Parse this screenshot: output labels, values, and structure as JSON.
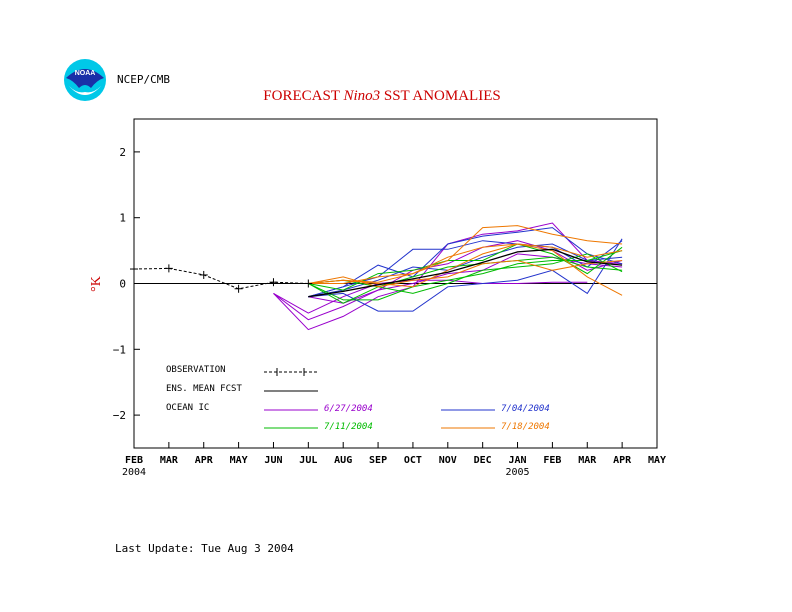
{
  "agency_label": "NCEP/CMB",
  "logo_text": "NOAA",
  "last_update": "Last Update: Tue Aug 3 2004",
  "colors": {
    "title": "#cc0000",
    "ylabel": "#cc0000",
    "ic_6_27": "#9900cc",
    "ic_7_04": "#2233cc",
    "ic_7_11": "#00bb00",
    "ic_7_18": "#ee7700",
    "ens_mean": "#000000",
    "observation": "#000000"
  },
  "chart_data": {
    "type": "line",
    "title_parts": [
      "FORECAST ",
      "Nino3",
      "  SST ANOMALIES"
    ],
    "ylabel": "°K",
    "ylim": [
      -2.5,
      2.5
    ],
    "yticks": [
      -2,
      -1,
      0,
      1,
      2
    ],
    "ytick_labels": [
      "−2",
      "−1",
      "0",
      "1",
      "2"
    ],
    "x_tick_labels": [
      "FEB",
      "MAR",
      "APR",
      "MAY",
      "JUN",
      "JUL",
      "AUG",
      "SEP",
      "OCT",
      "NOV",
      "DEC",
      "JAN",
      "FEB",
      "MAR",
      "APR",
      "MAY"
    ],
    "x_year_labels": [
      {
        "index": 0,
        "label": "2004"
      },
      {
        "index": 11,
        "label": "2005"
      }
    ],
    "legend": {
      "observation": "OBSERVATION",
      "ens_mean": "ENS. MEAN FCST",
      "ocean_ic": "OCEAN IC",
      "ic_labels": [
        "6/27/2004",
        "7/04/2004",
        "7/11/2004",
        "7/18/2004"
      ]
    },
    "observation": {
      "x": [
        0,
        1,
        2,
        3,
        4,
        5
      ],
      "y": [
        0.22,
        0.23,
        0.13,
        -0.08,
        0.02,
        0.0
      ]
    },
    "ens_mean": {
      "x": [
        5,
        6,
        7,
        8,
        9,
        10,
        11,
        12,
        13,
        14
      ],
      "y": [
        -0.2,
        -0.12,
        -0.02,
        0.07,
        0.17,
        0.32,
        0.48,
        0.52,
        0.33,
        0.28
      ]
    },
    "members": [
      {
        "group": "ic_6_27",
        "x": [
          4,
          5,
          6,
          7,
          8,
          9,
          10,
          11,
          12,
          13,
          14
        ],
        "y": [
          -0.15,
          -0.7,
          -0.5,
          -0.2,
          -0.05,
          0.6,
          0.75,
          0.8,
          0.92,
          0.35,
          0.3
        ]
      },
      {
        "group": "ic_6_27",
        "x": [
          4,
          5,
          6,
          7,
          8,
          9,
          10,
          11,
          12,
          13,
          14
        ],
        "y": [
          -0.15,
          -0.55,
          -0.35,
          -0.1,
          0.2,
          0.3,
          0.55,
          0.65,
          0.5,
          0.2,
          0.35
        ]
      },
      {
        "group": "ic_6_27",
        "x": [
          4,
          5,
          6,
          7,
          8,
          9,
          10,
          11,
          12,
          13
        ],
        "y": [
          -0.15,
          -0.45,
          -0.2,
          0.0,
          0.05,
          0.05,
          0.0,
          0.0,
          0.02,
          0.02
        ]
      },
      {
        "group": "ic_6_27",
        "x": [
          5,
          6,
          7,
          8,
          9,
          10,
          11,
          12,
          13,
          14
        ],
        "y": [
          -0.2,
          -0.3,
          -0.1,
          0.0,
          0.15,
          0.2,
          0.45,
          0.4,
          0.3,
          0.25
        ]
      },
      {
        "group": "ic_7_04",
        "x": [
          5,
          6,
          7,
          8,
          9,
          10,
          11,
          12,
          13,
          14
        ],
        "y": [
          -0.2,
          -0.15,
          -0.42,
          -0.42,
          -0.05,
          0.0,
          0.05,
          0.2,
          -0.15,
          0.68
        ]
      },
      {
        "group": "ic_7_04",
        "x": [
          5,
          6,
          7,
          8,
          9,
          10,
          11,
          12,
          13,
          14
        ],
        "y": [
          -0.2,
          -0.05,
          0.28,
          0.1,
          0.6,
          0.72,
          0.78,
          0.85,
          0.45,
          0.3
        ]
      },
      {
        "group": "ic_7_04",
        "x": [
          5,
          6,
          7,
          8,
          9,
          10,
          11,
          12,
          13,
          14
        ],
        "y": [
          -0.2,
          -0.05,
          0.1,
          0.52,
          0.52,
          0.65,
          0.6,
          0.55,
          0.25,
          0.65
        ]
      },
      {
        "group": "ic_7_04",
        "x": [
          5,
          6,
          7,
          8,
          9,
          10,
          11,
          12,
          13,
          14
        ],
        "y": [
          -0.2,
          -0.1,
          0.05,
          0.25,
          0.2,
          0.4,
          0.55,
          0.6,
          0.35,
          0.4
        ]
      },
      {
        "group": "ic_7_11",
        "x": [
          5,
          6,
          7,
          8,
          9,
          10,
          11,
          12,
          13,
          14
        ],
        "y": [
          0.0,
          -0.25,
          -0.25,
          -0.05,
          0.05,
          0.15,
          0.3,
          0.35,
          0.35,
          0.5
        ]
      },
      {
        "group": "ic_7_11",
        "x": [
          5,
          6,
          7,
          8,
          9,
          10,
          11,
          12,
          13,
          14
        ],
        "y": [
          0.0,
          -0.3,
          -0.05,
          0.1,
          0.25,
          0.3,
          0.35,
          0.4,
          0.25,
          0.2
        ]
      },
      {
        "group": "ic_7_11",
        "x": [
          5,
          6,
          7,
          8,
          9,
          10,
          11,
          12,
          13,
          14
        ],
        "y": [
          0.0,
          -0.1,
          0.15,
          0.2,
          0.35,
          0.35,
          0.6,
          0.45,
          0.15,
          0.55
        ]
      },
      {
        "group": "ic_7_11",
        "x": [
          5,
          6,
          7,
          8,
          9,
          10,
          11,
          12,
          13,
          14
        ],
        "y": [
          0.0,
          0.05,
          -0.05,
          -0.15,
          0.0,
          0.2,
          0.25,
          0.3,
          0.45,
          0.18
        ]
      },
      {
        "group": "ic_7_18",
        "x": [
          5,
          6,
          7,
          8,
          9,
          10,
          11,
          12,
          13,
          14
        ],
        "y": [
          0.0,
          0.05,
          0.0,
          -0.05,
          0.2,
          0.45,
          0.6,
          0.5,
          0.1,
          -0.18
        ]
      },
      {
        "group": "ic_7_18",
        "x": [
          5,
          6,
          7,
          8,
          9,
          10,
          11,
          12,
          13,
          14
        ],
        "y": [
          0.0,
          0.0,
          0.1,
          0.15,
          0.35,
          0.85,
          0.88,
          0.75,
          0.65,
          0.6
        ]
      },
      {
        "group": "ic_7_18",
        "x": [
          5,
          6,
          7,
          8,
          9,
          10,
          11,
          12,
          13,
          14
        ],
        "y": [
          0.0,
          0.05,
          0.02,
          0.15,
          0.4,
          0.55,
          0.6,
          0.55,
          0.4,
          0.5
        ]
      },
      {
        "group": "ic_7_18",
        "x": [
          5,
          6,
          7,
          8,
          9,
          10,
          11,
          12,
          13,
          14
        ],
        "y": [
          0.0,
          0.1,
          -0.05,
          0.05,
          0.1,
          0.3,
          0.35,
          0.2,
          0.3,
          0.35
        ]
      }
    ]
  }
}
